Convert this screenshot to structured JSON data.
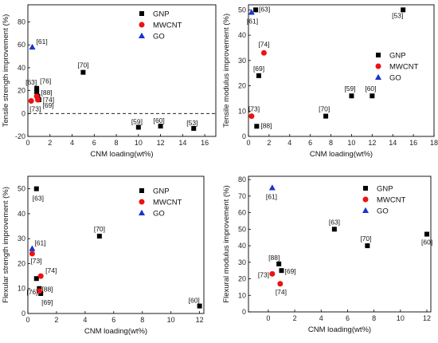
{
  "chart_data": [
    {
      "type": "scatter",
      "xlabel": "CNM loading(wt%)",
      "ylabel": "Tensile strength improvement (%)",
      "xlim": [
        0,
        17
      ],
      "ylim": [
        -20,
        95
      ],
      "xticks": [
        0,
        2,
        4,
        6,
        8,
        10,
        12,
        14,
        16
      ],
      "yticks": [
        -20,
        0,
        20,
        40,
        60,
        80
      ],
      "zero_line": true,
      "legend": "top-right",
      "series": [
        {
          "name": "GNP",
          "marker": "square",
          "color": "#000000",
          "points": [
            {
              "x": 5.0,
              "y": 36,
              "label": "[70]"
            },
            {
              "x": 0.8,
              "y": 22,
              "label": "[76]"
            },
            {
              "x": 0.8,
              "y": 19,
              "label": "[63]"
            },
            {
              "x": 0.9,
              "y": 15,
              "label": "[88]"
            },
            {
              "x": 1.0,
              "y": 12,
              "label": "[74]"
            },
            {
              "x": 10.0,
              "y": -12,
              "label": "[59]"
            },
            {
              "x": 12.0,
              "y": -11,
              "label": "[60]"
            },
            {
              "x": 15.0,
              "y": -13,
              "label": "[53]"
            }
          ]
        },
        {
          "name": "MWCNT",
          "marker": "circle",
          "color": "#ee1111",
          "points": [
            {
              "x": 0.3,
              "y": 11,
              "label": "[73]"
            },
            {
              "x": 0.8,
              "y": 15,
              "label": ""
            },
            {
              "x": 0.9,
              "y": 12,
              "label": "[69]"
            }
          ]
        },
        {
          "name": "GO",
          "marker": "triangle",
          "color": "#1a33cc",
          "points": [
            {
              "x": 0.4,
              "y": 58,
              "label": "[61]"
            }
          ]
        }
      ]
    },
    {
      "type": "scatter",
      "xlabel": "CNM loading(wt%)",
      "ylabel": "Tensile modulus improvement (%)",
      "xlim": [
        0,
        18
      ],
      "ylim": [
        0,
        52
      ],
      "xticks": [
        0,
        2,
        4,
        6,
        8,
        10,
        12,
        14,
        16,
        18
      ],
      "yticks": [
        0,
        10,
        20,
        30,
        40,
        50
      ],
      "zero_line": false,
      "legend": "center-right",
      "series": [
        {
          "name": "GNP",
          "marker": "square",
          "color": "#000000",
          "points": [
            {
              "x": 0.7,
              "y": 50,
              "label": "[63]"
            },
            {
              "x": 15.0,
              "y": 50,
              "label": "[53]"
            },
            {
              "x": 1.0,
              "y": 24,
              "label": "[69]"
            },
            {
              "x": 10.0,
              "y": 16,
              "label": "[59]"
            },
            {
              "x": 12.0,
              "y": 16,
              "label": "[60]"
            },
            {
              "x": 7.5,
              "y": 8,
              "label": "[70]"
            },
            {
              "x": 0.8,
              "y": 4,
              "label": "[88]"
            }
          ]
        },
        {
          "name": "MWCNT",
          "marker": "circle",
          "color": "#ee1111",
          "points": [
            {
              "x": 1.5,
              "y": 33,
              "label": "[74]"
            },
            {
              "x": 0.3,
              "y": 8,
              "label": "[73]"
            }
          ]
        },
        {
          "name": "GO",
          "marker": "triangle",
          "color": "#1a33cc",
          "points": [
            {
              "x": 0.3,
              "y": 49,
              "label": "[61]"
            }
          ]
        }
      ]
    },
    {
      "type": "scatter",
      "xlabel": "CNM loading(wt%)",
      "ylabel": "Flexular strength improvement (%)",
      "xlim": [
        0,
        12.3
      ],
      "ylim": [
        0,
        55
      ],
      "xticks": [
        0,
        2,
        4,
        6,
        8,
        10,
        12
      ],
      "yticks": [
        0,
        10,
        20,
        30,
        40,
        50
      ],
      "zero_line": false,
      "legend": "top-right",
      "series": [
        {
          "name": "GNP",
          "marker": "square",
          "color": "#000000",
          "points": [
            {
              "x": 0.6,
              "y": 50,
              "label": "[63]"
            },
            {
              "x": 5.0,
              "y": 31,
              "label": "[70]"
            },
            {
              "x": 0.6,
              "y": 14,
              "label": ""
            },
            {
              "x": 0.8,
              "y": 10,
              "label": "[88]"
            },
            {
              "x": 0.9,
              "y": 8,
              "label": "[69]"
            },
            {
              "x": 12.0,
              "y": 3,
              "label": "[60]"
            }
          ]
        },
        {
          "name": "MWCNT",
          "marker": "circle",
          "color": "#ee1111",
          "points": [
            {
              "x": 0.3,
              "y": 24,
              "label": "[73]"
            },
            {
              "x": 0.9,
              "y": 15,
              "label": "[74]"
            },
            {
              "x": 0.8,
              "y": 9,
              "label": "[76]"
            }
          ]
        },
        {
          "name": "GO",
          "marker": "triangle",
          "color": "#1a33cc",
          "points": [
            {
              "x": 0.3,
              "y": 26,
              "label": "[61]"
            }
          ]
        }
      ]
    },
    {
      "type": "scatter",
      "xlabel": "CNM loading(wt%)",
      "ylabel": "Flexural modulus improvement (%)",
      "xlim": [
        -1.5,
        12.3
      ],
      "ylim": [
        0,
        82
      ],
      "xticks": [
        0,
        2,
        4,
        6,
        8,
        10,
        12
      ],
      "yticks": [
        0,
        10,
        20,
        30,
        40,
        50,
        60,
        70,
        80
      ],
      "zero_line": false,
      "legend": "top-right",
      "series": [
        {
          "name": "GNP",
          "marker": "square",
          "color": "#000000",
          "points": [
            {
              "x": 5.0,
              "y": 50,
              "label": "[63]"
            },
            {
              "x": 7.5,
              "y": 40,
              "label": "[70]"
            },
            {
              "x": 12.0,
              "y": 47,
              "label": "[60]"
            },
            {
              "x": 0.8,
              "y": 29,
              "label": "[88]"
            },
            {
              "x": 1.0,
              "y": 25,
              "label": "[69]"
            }
          ]
        },
        {
          "name": "MWCNT",
          "marker": "circle",
          "color": "#ee1111",
          "points": [
            {
              "x": 0.3,
              "y": 23,
              "label": "[73]"
            },
            {
              "x": 0.9,
              "y": 17,
              "label": "[74]"
            }
          ]
        },
        {
          "name": "GO",
          "marker": "triangle",
          "color": "#1a33cc",
          "points": [
            {
              "x": 0.3,
              "y": 75,
              "label": "[61]"
            }
          ]
        }
      ]
    }
  ]
}
